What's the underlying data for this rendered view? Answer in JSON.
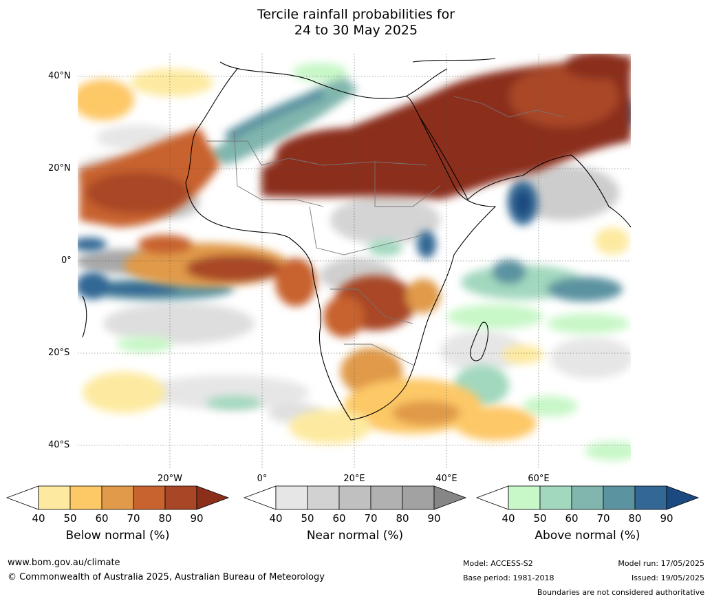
{
  "title": {
    "line1": "Tercile rainfall probabilities for",
    "line2": "24 to 30 May 2025"
  },
  "map": {
    "lat_labels": [
      "40°N",
      "20°N",
      "0°",
      "20°S",
      "40°S"
    ],
    "lon_labels": [
      "20°W",
      "0°",
      "20°E",
      "40°E",
      "60°E"
    ],
    "region": "Africa",
    "gridlines": "dotted"
  },
  "legends": [
    {
      "label": "Below normal (%)",
      "ticks": [
        "40",
        "50",
        "60",
        "70",
        "80",
        "90"
      ],
      "colors": [
        "#ffffff",
        "#fdeaa0",
        "#fdc866",
        "#e09a4a",
        "#c8622f",
        "#a94626",
        "#8b2f1b"
      ]
    },
    {
      "label": "Near normal (%)",
      "ticks": [
        "40",
        "50",
        "60",
        "70",
        "80",
        "90"
      ],
      "colors": [
        "#ffffff",
        "#e6e6e6",
        "#d2d2d2",
        "#c0c0c0",
        "#b1b1b1",
        "#a2a2a2",
        "#868686"
      ]
    },
    {
      "label": "Above normal (%)",
      "ticks": [
        "40",
        "50",
        "60",
        "70",
        "80",
        "90"
      ],
      "colors": [
        "#ffffff",
        "#c8f7c8",
        "#a2d8be",
        "#80b6ad",
        "#5c93a0",
        "#336794",
        "#1a4a80"
      ]
    }
  ],
  "footer": {
    "website": "www.bom.gov.au/climate",
    "copyright": "© Commonwealth of Australia 2025, Australian Bureau of Meteorology",
    "model": "Model: ACCESS-S2",
    "base_period": "Base period: 1981-2018",
    "model_run": "Model run: 17/05/2025",
    "issued": "Issued: 19/05/2025",
    "boundaries_note": "Boundaries are not considered authoritative"
  }
}
